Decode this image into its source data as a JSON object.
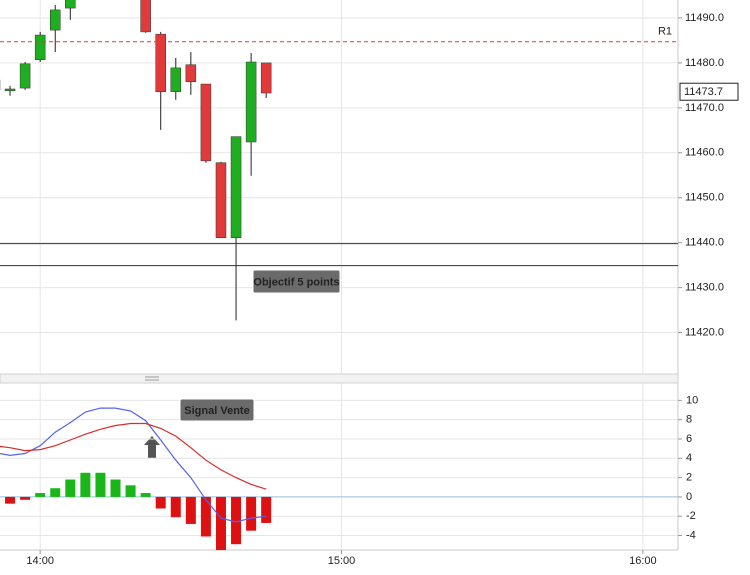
{
  "chart_data": [
    {
      "type": "candlestick",
      "x": [
        "13:51",
        "13:54",
        "13:57",
        "14:00",
        "14:03",
        "14:06",
        "14:21",
        "14:24",
        "14:27",
        "14:30",
        "14:33",
        "14:36",
        "14:39",
        "14:42",
        "14:45"
      ],
      "open": [
        11476.2,
        11473.8,
        11474.4,
        11480.7,
        11487.3,
        11492.2,
        11497.0,
        11486.4,
        11473.6,
        11479.6,
        11475.3,
        11457.8,
        11441.1,
        11462.4,
        11480.0
      ],
      "high": [
        11477.0,
        11474.9,
        11480.2,
        11486.9,
        11492.9,
        11497.0,
        11499.0,
        11486.9,
        11481.1,
        11482.4,
        11475.3,
        11458.0,
        11463.6,
        11482.2,
        11480.0
      ],
      "low": [
        11472.9,
        11472.7,
        11474.0,
        11480.2,
        11482.4,
        11489.6,
        11486.7,
        11465.1,
        11471.8,
        11472.9,
        11457.8,
        11441.1,
        11422.7,
        11454.9,
        11472.2
      ],
      "close": [
        11474.0,
        11474.2,
        11479.8,
        11486.2,
        11491.8,
        11495.0,
        11486.9,
        11473.6,
        11478.9,
        11475.8,
        11458.2,
        11441.1,
        11463.6,
        11480.2,
        11473.3
      ],
      "up_color": "#1fae1f",
      "down_color": "#e03a3a",
      "xlim": [
        "13:52",
        "16:07"
      ],
      "xticks": [
        "14:00",
        "15:00",
        "16:00"
      ],
      "ylim": [
        11411,
        11494
      ],
      "yticks": [
        {
          "value": 11420,
          "label": "11420.0"
        },
        {
          "value": 11430,
          "label": "11430.0"
        },
        {
          "value": 11440,
          "label": "11440.0"
        },
        {
          "value": 11450,
          "label": "11450.0"
        },
        {
          "value": 11460,
          "label": "11460.0"
        },
        {
          "value": 11470,
          "label": "11470.0"
        },
        {
          "value": 11480,
          "label": "11480.0"
        },
        {
          "value": 11490,
          "label": "11490.0"
        }
      ],
      "grid": true,
      "lines": [
        {
          "label": "R1",
          "value": 11484.7,
          "color": "#e03a3a",
          "dashed": true
        },
        {
          "value": 11439.8,
          "color": "#333333",
          "dashed": false
        },
        {
          "value": 11434.9,
          "color": "#333333",
          "dashed": false
        }
      ],
      "last_price": 11473.7,
      "annotations": [
        "Objectif 5 points"
      ]
    },
    {
      "type": "combo",
      "x": [
        "13:51",
        "13:54",
        "13:57",
        "14:00",
        "14:03",
        "14:06",
        "14:09",
        "14:12",
        "14:15",
        "14:18",
        "14:21",
        "14:24",
        "14:27",
        "14:30",
        "14:33",
        "14:36",
        "14:39",
        "14:42",
        "14:45"
      ],
      "series": [
        {
          "type": "bar",
          "positive_color": "#19b519",
          "negative_color": "#dd1111",
          "values": [
            -0.6,
            -0.7,
            -0.3,
            0.4,
            0.9,
            1.8,
            2.5,
            2.5,
            1.8,
            1.2,
            0.4,
            -1.2,
            -2.1,
            -2.8,
            -4.1,
            -5.7,
            -4.9,
            -3.5,
            -2.7
          ]
        },
        {
          "type": "line",
          "color": "#5563ea",
          "values": [
            4.6,
            4.3,
            4.5,
            5.3,
            6.7,
            7.7,
            8.8,
            9.2,
            9.2,
            8.9,
            7.9,
            5.9,
            3.8,
            2.0,
            -0.3,
            -2.2,
            -2.6,
            -2.2,
            -2.0
          ]
        },
        {
          "type": "line",
          "color": "#dd2a2a",
          "values": [
            5.3,
            5.1,
            4.8,
            4.9,
            5.3,
            5.9,
            6.5,
            7.0,
            7.4,
            7.6,
            7.6,
            7.1,
            6.3,
            5.1,
            3.8,
            2.8,
            2.0,
            1.3,
            0.8
          ]
        }
      ],
      "xlim": [
        "13:52",
        "16:07"
      ],
      "xticks": [
        "14:00",
        "15:00",
        "16:00"
      ],
      "ylim": [
        -5.5,
        11.8
      ],
      "yticks": [
        -4,
        -2,
        0,
        2,
        4,
        6,
        8,
        10
      ],
      "grid": true,
      "zero_line_color": "#9cc3de",
      "annotations": [
        "Signal Vente"
      ]
    }
  ]
}
